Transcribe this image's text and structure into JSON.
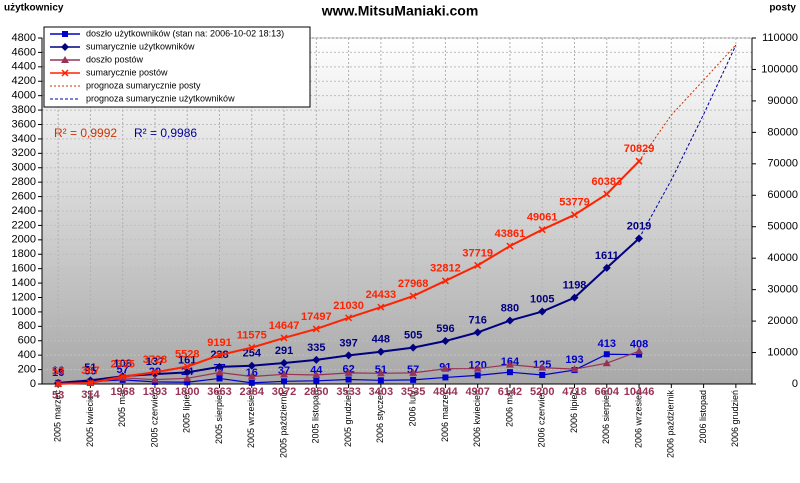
{
  "chart_data": {
    "type": "line",
    "title": "www.MitsuManiaki.com",
    "y_label": "użytkownicy",
    "y2_label": "posty",
    "categories": [
      "2005 marzec",
      "2005 kwiecień",
      "2005 maj",
      "2005 czerwiec",
      "2005 lipiec",
      "2005 sierpień",
      "2005 wrzesień",
      "2005 październik",
      "2005 listopad",
      "2005 grudzień",
      "2006 styczeń",
      "2006 luty",
      "2006 marzec",
      "2006 kwiecień",
      "2006 maj",
      "2006 czerwiec",
      "2006 lipiec",
      "2006 sierpień",
      "2006 wrzesień",
      "2006 październik",
      "2006 listopad",
      "2006 grudzień"
    ],
    "series": [
      {
        "name": "doszło użytkowników (stan na: 2006-10-02 18:13)",
        "color": "#0000cc",
        "marker": "square",
        "axis": "y",
        "values": [
          16,
          35,
          57,
          29,
          24,
          77,
          16,
          37,
          44,
          62,
          51,
          57,
          91,
          120,
          164,
          125,
          193,
          413,
          408,
          null,
          null,
          null
        ]
      },
      {
        "name": "sumarycznie użytkowników",
        "color": "#000080",
        "marker": "diamond",
        "axis": "y",
        "values": [
          16,
          51,
          108,
          137,
          161,
          238,
          254,
          291,
          335,
          397,
          448,
          505,
          596,
          716,
          880,
          1005,
          1198,
          1611,
          2019,
          null,
          null,
          null
        ]
      },
      {
        "name": "doszło postów",
        "color": "#993355",
        "marker": "triangle",
        "axis": "y2",
        "values": [
          53,
          314,
          1968,
          1393,
          1800,
          3663,
          2384,
          3072,
          2850,
          3533,
          3403,
          3535,
          4844,
          4907,
          6142,
          5200,
          4718,
          6604,
          10446,
          null,
          null,
          null
        ]
      },
      {
        "name": "sumarycznie postów",
        "color": "#ff2200",
        "marker": "x",
        "axis": "y2",
        "values": [
          53,
          367,
          2335,
          3728,
          5528,
          9191,
          11575,
          14647,
          17497,
          21030,
          24433,
          27968,
          32812,
          37719,
          43861,
          49061,
          53779,
          60383,
          70829,
          null,
          null,
          null
        ]
      },
      {
        "name": "prognoza sumarycznie posty",
        "color": "#cc3300",
        "marker": "none",
        "dash": "2,2",
        "axis": "y2",
        "values": [
          null,
          null,
          null,
          null,
          null,
          null,
          null,
          null,
          null,
          null,
          null,
          null,
          null,
          null,
          null,
          null,
          null,
          null,
          70829,
          85500,
          96600,
          107800
        ]
      },
      {
        "name": "prognoza sumarycznie użytkowników",
        "color": "#000099",
        "marker": "none",
        "dash": "3,2",
        "axis": "y",
        "values": [
          null,
          null,
          null,
          null,
          null,
          null,
          null,
          null,
          null,
          null,
          null,
          null,
          null,
          null,
          null,
          null,
          null,
          null,
          2019,
          2830,
          3740,
          4700
        ]
      }
    ],
    "annotations": [
      {
        "text": "R² = 0,9992",
        "color": "#cc3300"
      },
      {
        "text": "R² = 0,9986",
        "color": "#000099"
      }
    ],
    "ylim": [
      0,
      4800
    ],
    "yticks": [
      0,
      200,
      400,
      600,
      800,
      1000,
      1200,
      1400,
      1600,
      1800,
      2000,
      2200,
      2400,
      2600,
      2800,
      3000,
      3200,
      3400,
      3600,
      3800,
      4000,
      4200,
      4400,
      4600,
      4800
    ],
    "y2lim": [
      0,
      110000
    ],
    "y2ticks": [
      0,
      10000,
      20000,
      30000,
      40000,
      50000,
      60000,
      70000,
      80000,
      90000,
      100000,
      110000
    ],
    "grid": true,
    "legend": "top-left"
  }
}
